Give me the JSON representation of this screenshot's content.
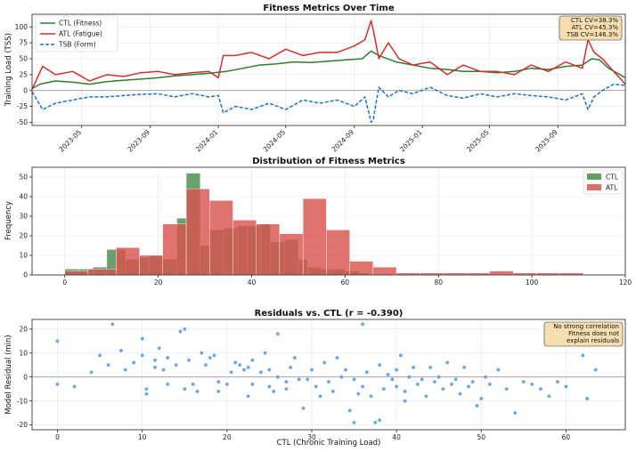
{
  "chart_data": [
    {
      "type": "line",
      "title": "Fitness Metrics Over Time",
      "xlabel": "",
      "ylabel": "Training Load (TSS)",
      "ylim": [
        -55,
        120
      ],
      "yticks": [
        -50,
        -25,
        0,
        25,
        50,
        75,
        100
      ],
      "xlim": [
        "2023-02-01",
        "2025-12-31"
      ],
      "xticks": [
        "2023-05",
        "2023-09",
        "2024-01",
        "2024-05",
        "2024-09",
        "2025-01",
        "2025-05",
        "2025-09"
      ],
      "legend": "top-left",
      "grid": true,
      "annotation": [
        "CTL CV=38.3%",
        "ATL CV=45.3%",
        "TSB CV=146.3%"
      ],
      "series": [
        {
          "name": "CTL (Fitness)",
          "color": "#2e7d32",
          "style": "solid",
          "x": [
            "2023-02-01",
            "2023-02-15",
            "2023-03-15",
            "2023-04-15",
            "2023-05-15",
            "2023-06-15",
            "2023-07-15",
            "2023-08-15",
            "2023-09-15",
            "2023-10-15",
            "2023-11-15",
            "2023-12-15",
            "2024-01-15",
            "2024-02-15",
            "2024-03-15",
            "2024-04-15",
            "2024-05-15",
            "2024-06-15",
            "2024-07-15",
            "2024-08-15",
            "2024-09-15",
            "2024-10-01",
            "2024-10-15",
            "2024-11-15",
            "2024-12-15",
            "2025-01-15",
            "2025-02-15",
            "2025-03-15",
            "2025-04-15",
            "2025-05-15",
            "2025-06-15",
            "2025-07-15",
            "2025-08-15",
            "2025-09-15",
            "2025-10-15",
            "2025-11-01",
            "2025-11-15",
            "2025-12-01",
            "2025-12-31"
          ],
          "y": [
            3,
            10,
            15,
            13,
            10,
            14,
            16,
            18,
            20,
            23,
            25,
            27,
            30,
            35,
            40,
            42,
            45,
            44,
            46,
            48,
            50,
            62,
            55,
            45,
            40,
            35,
            33,
            30,
            30,
            28,
            30,
            35,
            33,
            38,
            40,
            50,
            48,
            35,
            20
          ]
        },
        {
          "name": "ATL (Fatigue)",
          "color": "#d32f2f",
          "style": "solid",
          "x": [
            "2023-02-01",
            "2023-02-20",
            "2023-03-15",
            "2023-04-15",
            "2023-05-15",
            "2023-06-15",
            "2023-07-15",
            "2023-08-15",
            "2023-09-15",
            "2023-10-15",
            "2023-11-15",
            "2023-12-15",
            "2024-01-01",
            "2024-01-10",
            "2024-02-01",
            "2024-03-01",
            "2024-04-01",
            "2024-05-01",
            "2024-06-01",
            "2024-07-01",
            "2024-08-01",
            "2024-09-01",
            "2024-09-20",
            "2024-10-01",
            "2024-10-05",
            "2024-10-15",
            "2024-11-01",
            "2024-11-20",
            "2024-12-15",
            "2025-01-15",
            "2025-02-15",
            "2025-03-15",
            "2025-04-15",
            "2025-05-15",
            "2025-06-15",
            "2025-07-15",
            "2025-08-15",
            "2025-09-15",
            "2025-10-15",
            "2025-10-25",
            "2025-11-05",
            "2025-11-20",
            "2025-12-10",
            "2025-12-31"
          ],
          "y": [
            2,
            38,
            25,
            30,
            15,
            25,
            22,
            28,
            30,
            25,
            28,
            30,
            20,
            55,
            55,
            60,
            50,
            65,
            55,
            60,
            60,
            70,
            80,
            110,
            95,
            50,
            75,
            50,
            40,
            45,
            25,
            40,
            30,
            30,
            25,
            40,
            30,
            45,
            35,
            80,
            60,
            50,
            30,
            10
          ]
        },
        {
          "name": "TSB (Form)",
          "color": "#1e6fc8",
          "style": "dashed",
          "x": [
            "2023-02-01",
            "2023-02-20",
            "2023-03-15",
            "2023-04-15",
            "2023-05-15",
            "2023-06-15",
            "2023-07-15",
            "2023-08-15",
            "2023-09-15",
            "2023-10-15",
            "2023-11-15",
            "2023-12-15",
            "2024-01-01",
            "2024-01-10",
            "2024-02-01",
            "2024-03-01",
            "2024-04-01",
            "2024-05-01",
            "2024-06-01",
            "2024-07-01",
            "2024-08-01",
            "2024-09-01",
            "2024-09-20",
            "2024-10-01",
            "2024-10-05",
            "2024-10-15",
            "2024-11-01",
            "2024-11-20",
            "2024-12-15",
            "2025-01-15",
            "2025-02-15",
            "2025-03-15",
            "2025-04-15",
            "2025-05-15",
            "2025-06-15",
            "2025-07-15",
            "2025-08-15",
            "2025-09-15",
            "2025-10-15",
            "2025-10-25",
            "2025-11-05",
            "2025-11-20",
            "2025-12-10",
            "2025-12-31"
          ],
          "y": [
            -2,
            -30,
            -20,
            -15,
            -10,
            -10,
            -8,
            -6,
            -5,
            -10,
            -5,
            -10,
            -8,
            -35,
            -25,
            -30,
            -20,
            -30,
            -15,
            -20,
            -15,
            -25,
            -10,
            -50,
            -45,
            5,
            -10,
            0,
            -5,
            5,
            -8,
            -12,
            -5,
            -10,
            -5,
            -8,
            -10,
            -15,
            -5,
            -30,
            -10,
            0,
            10,
            8
          ]
        }
      ]
    },
    {
      "type": "bar",
      "title": "Distribution of Fitness Metrics",
      "xlabel": "",
      "ylabel": "Frequency",
      "xlim": [
        -7,
        120
      ],
      "ylim": [
        0,
        55
      ],
      "xticks": [
        0,
        20,
        40,
        60,
        80,
        100,
        120
      ],
      "yticks": [
        0,
        10,
        20,
        30,
        40,
        50
      ],
      "legend": "top-right",
      "grid": true,
      "series": [
        {
          "name": "CTL",
          "color": "#2e7d32",
          "bins": [
            [
              0,
              3,
              3
            ],
            [
              3,
              6,
              3
            ],
            [
              6,
              9,
              4
            ],
            [
              9,
              11,
              13
            ],
            [
              11,
              13,
              13
            ],
            [
              13,
              16,
              8
            ],
            [
              16,
              18,
              9
            ],
            [
              18,
              21,
              10
            ],
            [
              21,
              24,
              8
            ],
            [
              24,
              26,
              29
            ],
            [
              26,
              29,
              52
            ],
            [
              29,
              31,
              15
            ],
            [
              31,
              34,
              23
            ],
            [
              34,
              37,
              24
            ],
            [
              37,
              39,
              25
            ],
            [
              39,
              42,
              25
            ],
            [
              42,
              44,
              26
            ],
            [
              44,
              47,
              17
            ],
            [
              47,
              50,
              18
            ],
            [
              50,
              52,
              8
            ],
            [
              52,
              55,
              4
            ],
            [
              55,
              57,
              3
            ],
            [
              57,
              60,
              3
            ],
            [
              60,
              63,
              2
            ],
            [
              63,
              65,
              1
            ]
          ]
        },
        {
          "name": "ATL",
          "color": "#d9534f",
          "bins": [
            [
              0,
              5,
              2
            ],
            [
              5,
              11,
              3
            ],
            [
              11,
              16,
              14
            ],
            [
              16,
              21,
              10
            ],
            [
              21,
              26,
              26
            ],
            [
              26,
              31,
              44
            ],
            [
              31,
              36,
              38
            ],
            [
              36,
              41,
              28
            ],
            [
              41,
              46,
              26
            ],
            [
              46,
              51,
              21
            ],
            [
              51,
              56,
              39
            ],
            [
              56,
              61,
              23
            ],
            [
              61,
              66,
              7
            ],
            [
              66,
              71,
              4
            ],
            [
              71,
              76,
              1
            ],
            [
              76,
              81,
              1
            ],
            [
              81,
              86,
              1
            ],
            [
              86,
              91,
              1
            ],
            [
              91,
              96,
              2
            ],
            [
              96,
              101,
              1
            ],
            [
              101,
              106,
              1
            ],
            [
              106,
              111,
              1
            ]
          ]
        }
      ]
    },
    {
      "type": "scatter",
      "title": "Residuals vs. CTL (r = -0.390)",
      "xlabel": "CTL (Chronic Training Load)",
      "ylabel": "Model Residual (min)",
      "xlim": [
        -3,
        67
      ],
      "ylim": [
        -22,
        24
      ],
      "xticks": [
        0,
        10,
        20,
        30,
        40,
        50,
        60
      ],
      "yticks": [
        -20,
        -10,
        0,
        10,
        20
      ],
      "grid": true,
      "zero_line": true,
      "annotation": [
        "No strong correlation",
        "Fitness does not",
        "explain residuals"
      ],
      "color": "#4a90d9",
      "points": [
        [
          0,
          15
        ],
        [
          0,
          -3
        ],
        [
          2,
          -4
        ],
        [
          4,
          2
        ],
        [
          5,
          9
        ],
        [
          6,
          5
        ],
        [
          6.5,
          22
        ],
        [
          7.5,
          11
        ],
        [
          8,
          3
        ],
        [
          9,
          6
        ],
        [
          10,
          16
        ],
        [
          10,
          9
        ],
        [
          10.5,
          -5
        ],
        [
          10.5,
          -7
        ],
        [
          11.5,
          4
        ],
        [
          11.5,
          7
        ],
        [
          12,
          12
        ],
        [
          12.5,
          3
        ],
        [
          13,
          -3
        ],
        [
          13,
          8
        ],
        [
          14,
          5
        ],
        [
          14.5,
          19
        ],
        [
          15,
          20
        ],
        [
          15,
          -5
        ],
        [
          15.5,
          7
        ],
        [
          16,
          -3
        ],
        [
          16.5,
          -6
        ],
        [
          17,
          10
        ],
        [
          17.5,
          5
        ],
        [
          18,
          8
        ],
        [
          18.5,
          9
        ],
        [
          19,
          -2
        ],
        [
          19,
          -6
        ],
        [
          20,
          -3
        ],
        [
          20.5,
          2
        ],
        [
          21,
          6
        ],
        [
          21.5,
          5
        ],
        [
          22,
          3
        ],
        [
          22.5,
          -8
        ],
        [
          22.5,
          4
        ],
        [
          23,
          7
        ],
        [
          23,
          -3
        ],
        [
          24,
          2
        ],
        [
          24.5,
          10
        ],
        [
          25,
          3
        ],
        [
          25,
          -4
        ],
        [
          25.5,
          -6
        ],
        [
          26,
          0
        ],
        [
          26,
          18
        ],
        [
          27,
          -2
        ],
        [
          27,
          -5
        ],
        [
          27.5,
          4
        ],
        [
          28,
          8
        ],
        [
          28.5,
          -1
        ],
        [
          29,
          -13
        ],
        [
          29.5,
          -1
        ],
        [
          30,
          3
        ],
        [
          30.5,
          -4
        ],
        [
          31,
          -8
        ],
        [
          31.5,
          6
        ],
        [
          32,
          -2
        ],
        [
          32.5,
          -6
        ],
        [
          33,
          8
        ],
        [
          33.5,
          0
        ],
        [
          34,
          3
        ],
        [
          34.5,
          -14
        ],
        [
          35,
          -1
        ],
        [
          35,
          -19
        ],
        [
          35.5,
          -7
        ],
        [
          36,
          22
        ],
        [
          36,
          -4
        ],
        [
          36.5,
          2
        ],
        [
          37,
          -8
        ],
        [
          37.5,
          -19
        ],
        [
          38,
          -18
        ],
        [
          38,
          5
        ],
        [
          38.5,
          -5
        ],
        [
          39,
          1
        ],
        [
          39.5,
          -1
        ],
        [
          40,
          -4
        ],
        [
          40,
          3
        ],
        [
          40.5,
          9
        ],
        [
          41,
          -6
        ],
        [
          41,
          -10
        ],
        [
          41.5,
          0
        ],
        [
          42,
          4
        ],
        [
          42.5,
          -3
        ],
        [
          43,
          -1
        ],
        [
          43.5,
          -8
        ],
        [
          44,
          4
        ],
        [
          44.5,
          -2
        ],
        [
          45,
          0
        ],
        [
          45.5,
          -5
        ],
        [
          46,
          6
        ],
        [
          46.5,
          -3
        ],
        [
          47,
          -1
        ],
        [
          47.5,
          -7
        ],
        [
          48,
          4
        ],
        [
          48.5,
          -4
        ],
        [
          49,
          -2
        ],
        [
          49.5,
          -12
        ],
        [
          50,
          -9
        ],
        [
          50.5,
          0
        ],
        [
          51,
          -3
        ],
        [
          52,
          3
        ],
        [
          53,
          -5
        ],
        [
          54,
          -15
        ],
        [
          55,
          -2
        ],
        [
          56,
          -3
        ],
        [
          57,
          -5
        ],
        [
          58,
          -8
        ],
        [
          59,
          -2
        ],
        [
          60,
          -4
        ],
        [
          62,
          9
        ],
        [
          62.5,
          -9
        ],
        [
          63.5,
          3
        ]
      ]
    }
  ]
}
